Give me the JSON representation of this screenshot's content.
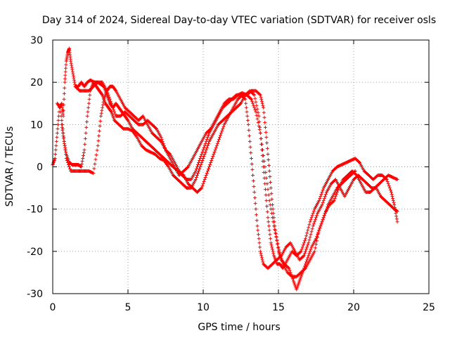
{
  "chart_data": {
    "type": "scatter",
    "title": "Day 314 of 2024, Sidereal Day-to-day VTEC variation (SDTVAR) for receiver osls",
    "xlabel": "GPS time / hours",
    "ylabel": "SDTVAR / TECUs",
    "xlim": [
      0,
      25
    ],
    "ylim": [
      -30,
      30
    ],
    "x_ticks": [
      0,
      5,
      10,
      15,
      20,
      25
    ],
    "y_ticks": [
      -30,
      -20,
      -10,
      0,
      10,
      20,
      30
    ],
    "grid": true,
    "marker": "+",
    "color": "#ff0000",
    "series": [
      {
        "values": [
          [
            0.0,
            0.5
          ],
          [
            0.15,
            2
          ],
          [
            0.3,
            8
          ],
          [
            0.45,
            14
          ],
          [
            0.6,
            15
          ],
          [
            0.7,
            12
          ],
          [
            0.8,
            20
          ],
          [
            0.9,
            25
          ],
          [
            1.0,
            27
          ],
          [
            1.1,
            28
          ],
          [
            1.2,
            25
          ],
          [
            1.35,
            22
          ],
          [
            1.5,
            19
          ],
          [
            1.7,
            19
          ],
          [
            1.9,
            20
          ],
          [
            2.1,
            19
          ],
          [
            2.3,
            20
          ],
          [
            2.5,
            20.5
          ],
          [
            2.8,
            20
          ],
          [
            3.0,
            20
          ],
          [
            3.2,
            19.5
          ],
          [
            3.4,
            19
          ],
          [
            3.6,
            17
          ],
          [
            3.8,
            15
          ],
          [
            4.0,
            14
          ],
          [
            4.2,
            15
          ],
          [
            4.4,
            14
          ],
          [
            4.6,
            13
          ],
          [
            4.8,
            12
          ],
          [
            5.0,
            11
          ],
          [
            5.3,
            9
          ],
          [
            5.6,
            8
          ],
          [
            5.9,
            7
          ],
          [
            6.2,
            6
          ],
          [
            6.5,
            5
          ],
          [
            6.8,
            4
          ],
          [
            7.1,
            3
          ],
          [
            7.4,
            2
          ],
          [
            7.7,
            1
          ],
          [
            8.0,
            0
          ],
          [
            8.3,
            -1
          ],
          [
            8.6,
            -2
          ],
          [
            8.9,
            -3
          ],
          [
            9.2,
            -3
          ],
          [
            9.5,
            -1
          ],
          [
            9.8,
            2
          ],
          [
            10.1,
            5
          ],
          [
            10.4,
            8
          ],
          [
            10.7,
            10
          ],
          [
            11.0,
            12
          ],
          [
            11.3,
            14
          ],
          [
            11.6,
            15
          ],
          [
            11.9,
            16
          ],
          [
            12.2,
            17
          ],
          [
            12.5,
            17
          ],
          [
            12.8,
            16
          ],
          [
            13.0,
            10
          ],
          [
            13.2,
            2
          ],
          [
            13.4,
            -6
          ],
          [
            13.6,
            -14
          ],
          [
            13.8,
            -20
          ],
          [
            14.0,
            -23
          ],
          [
            14.3,
            -24
          ],
          [
            14.6,
            -23
          ],
          [
            14.9,
            -22
          ],
          [
            15.2,
            -21
          ],
          [
            15.5,
            -19
          ],
          [
            15.8,
            -18
          ],
          [
            16.1,
            -20
          ],
          [
            16.4,
            -22
          ],
          [
            16.7,
            -21
          ],
          [
            17.0,
            -18
          ],
          [
            17.3,
            -14
          ],
          [
            17.6,
            -11
          ],
          [
            17.9,
            -9
          ],
          [
            18.2,
            -6
          ],
          [
            18.5,
            -4
          ],
          [
            18.8,
            -3
          ],
          [
            19.1,
            -5
          ],
          [
            19.4,
            -7
          ],
          [
            19.7,
            -5
          ],
          [
            20.0,
            -3
          ],
          [
            20.3,
            -2
          ],
          [
            20.6,
            -3
          ],
          [
            20.9,
            -4
          ],
          [
            21.2,
            -5
          ],
          [
            21.5,
            -5
          ],
          [
            21.8,
            -7
          ],
          [
            22.1,
            -8
          ],
          [
            22.4,
            -9
          ],
          [
            22.7,
            -10
          ],
          [
            22.9,
            -10.5
          ]
        ]
      },
      {
        "values": [
          [
            0.6,
            10
          ],
          [
            0.75,
            6
          ],
          [
            0.9,
            3
          ],
          [
            1.1,
            1
          ],
          [
            1.3,
            0.5
          ],
          [
            1.5,
            0.5
          ],
          [
            1.7,
            0.5
          ],
          [
            1.9,
            0
          ],
          [
            2.1,
            4
          ],
          [
            2.3,
            12
          ],
          [
            2.5,
            18
          ],
          [
            2.7,
            20
          ],
          [
            2.9,
            19
          ],
          [
            3.1,
            18
          ],
          [
            3.3,
            17
          ],
          [
            3.5,
            15
          ],
          [
            3.7,
            14
          ],
          [
            3.9,
            13
          ],
          [
            4.1,
            11
          ],
          [
            4.4,
            10
          ],
          [
            4.7,
            9
          ],
          [
            5.0,
            9
          ],
          [
            5.3,
            8.5
          ],
          [
            5.6,
            7
          ],
          [
            5.9,
            5
          ],
          [
            6.2,
            4
          ],
          [
            6.5,
            3.5
          ],
          [
            6.8,
            3
          ],
          [
            7.1,
            2
          ],
          [
            7.4,
            1.5
          ],
          [
            7.7,
            0
          ],
          [
            8.0,
            -2
          ],
          [
            8.3,
            -3
          ],
          [
            8.6,
            -4
          ],
          [
            8.9,
            -5
          ],
          [
            9.2,
            -5
          ],
          [
            9.5,
            -3
          ],
          [
            9.8,
            0
          ],
          [
            10.1,
            3
          ],
          [
            10.4,
            6
          ],
          [
            10.7,
            8
          ],
          [
            11.0,
            10
          ],
          [
            11.3,
            11
          ],
          [
            11.6,
            12
          ],
          [
            11.9,
            13
          ],
          [
            12.2,
            14
          ],
          [
            12.5,
            15
          ],
          [
            12.8,
            17
          ],
          [
            13.1,
            18
          ],
          [
            13.4,
            17
          ],
          [
            13.7,
            12
          ],
          [
            13.9,
            4
          ],
          [
            14.1,
            -4
          ],
          [
            14.3,
            -12
          ],
          [
            14.5,
            -18
          ],
          [
            14.7,
            -21
          ],
          [
            14.9,
            -23
          ],
          [
            15.1,
            -23
          ],
          [
            15.3,
            -24
          ],
          [
            15.6,
            -22
          ],
          [
            15.9,
            -20
          ],
          [
            16.2,
            -21
          ],
          [
            16.5,
            -20
          ],
          [
            16.8,
            -17
          ],
          [
            17.1,
            -13
          ],
          [
            17.4,
            -10
          ],
          [
            17.7,
            -8
          ],
          [
            18.0,
            -5
          ],
          [
            18.3,
            -3
          ],
          [
            18.6,
            -1
          ],
          [
            18.9,
            0
          ],
          [
            19.2,
            0.5
          ],
          [
            19.5,
            1
          ],
          [
            19.8,
            1.5
          ],
          [
            20.1,
            2
          ],
          [
            20.4,
            1
          ],
          [
            20.7,
            -1
          ],
          [
            21.0,
            -2
          ],
          [
            21.3,
            -3
          ],
          [
            21.6,
            -2
          ],
          [
            21.9,
            -2
          ],
          [
            22.2,
            -3
          ],
          [
            22.5,
            -6
          ],
          [
            22.7,
            -9
          ],
          [
            22.9,
            -13
          ]
        ]
      },
      {
        "values": [
          [
            0.3,
            15
          ],
          [
            0.5,
            14
          ],
          [
            0.7,
            8
          ],
          [
            0.9,
            2
          ],
          [
            1.2,
            -1
          ],
          [
            1.5,
            -1
          ],
          [
            1.8,
            -1
          ],
          [
            2.1,
            -1
          ],
          [
            2.4,
            -1
          ],
          [
            2.7,
            -1.5
          ],
          [
            3.0,
            5
          ],
          [
            3.2,
            12
          ],
          [
            3.4,
            16
          ],
          [
            3.6,
            18
          ],
          [
            3.8,
            19
          ],
          [
            4.0,
            19
          ],
          [
            4.2,
            18
          ],
          [
            4.5,
            16
          ],
          [
            4.8,
            14
          ],
          [
            5.1,
            13
          ],
          [
            5.4,
            12
          ],
          [
            5.7,
            11
          ],
          [
            6.0,
            12
          ],
          [
            6.3,
            10
          ],
          [
            6.6,
            8
          ],
          [
            6.9,
            7
          ],
          [
            7.2,
            6
          ],
          [
            7.5,
            4
          ],
          [
            7.8,
            3
          ],
          [
            8.1,
            1
          ],
          [
            8.4,
            -1
          ],
          [
            8.7,
            -2
          ],
          [
            9.0,
            -4
          ],
          [
            9.3,
            -5
          ],
          [
            9.6,
            -6
          ],
          [
            9.9,
            -5
          ],
          [
            10.2,
            -2
          ],
          [
            10.5,
            1
          ],
          [
            10.8,
            4
          ],
          [
            11.1,
            7
          ],
          [
            11.4,
            10
          ],
          [
            11.7,
            12
          ],
          [
            12.0,
            14
          ],
          [
            12.3,
            16
          ],
          [
            12.6,
            17
          ],
          [
            12.9,
            17
          ],
          [
            13.2,
            18
          ],
          [
            13.5,
            18
          ],
          [
            13.8,
            17
          ],
          [
            14.0,
            14
          ],
          [
            14.2,
            7
          ],
          [
            14.4,
            -1
          ],
          [
            14.6,
            -9
          ],
          [
            14.8,
            -15
          ],
          [
            15.0,
            -20
          ],
          [
            15.2,
            -22
          ],
          [
            15.4,
            -23
          ],
          [
            15.7,
            -24
          ],
          [
            16.0,
            -27
          ],
          [
            16.2,
            -29
          ],
          [
            16.4,
            -27
          ],
          [
            16.6,
            -25
          ],
          [
            16.9,
            -22
          ],
          [
            17.2,
            -19
          ],
          [
            17.5,
            -17
          ],
          [
            17.8,
            -14
          ],
          [
            18.1,
            -11
          ],
          [
            18.4,
            -9
          ],
          [
            18.7,
            -8
          ],
          [
            19.0,
            -5
          ],
          [
            19.3,
            -3
          ],
          [
            19.6,
            -2
          ],
          [
            19.9,
            -1
          ],
          [
            20.2,
            -2
          ],
          [
            20.5,
            -4
          ],
          [
            20.8,
            -6
          ],
          [
            21.1,
            -6
          ],
          [
            21.4,
            -5
          ],
          [
            21.7,
            -4
          ],
          [
            22.0,
            -3
          ],
          [
            22.3,
            -2
          ],
          [
            22.6,
            -2.5
          ],
          [
            22.9,
            -3
          ]
        ]
      },
      {
        "values": [
          [
            1.5,
            19
          ],
          [
            1.8,
            18
          ],
          [
            2.1,
            18
          ],
          [
            2.4,
            18
          ],
          [
            2.7,
            19
          ],
          [
            3.0,
            20
          ],
          [
            3.3,
            20
          ],
          [
            3.6,
            18
          ],
          [
            3.9,
            15
          ],
          [
            4.2,
            12
          ],
          [
            4.5,
            12
          ],
          [
            4.8,
            13
          ],
          [
            5.1,
            12
          ],
          [
            5.4,
            11
          ],
          [
            5.7,
            10
          ],
          [
            6.0,
            10
          ],
          [
            6.3,
            11
          ],
          [
            6.6,
            10
          ],
          [
            6.9,
            9
          ],
          [
            7.2,
            7
          ],
          [
            7.5,
            4
          ],
          [
            7.8,
            2
          ],
          [
            8.1,
            0
          ],
          [
            8.4,
            -2
          ],
          [
            8.7,
            -1
          ],
          [
            9.0,
            0
          ],
          [
            9.3,
            2
          ],
          [
            9.6,
            4
          ],
          [
            9.9,
            6
          ],
          [
            10.2,
            8
          ],
          [
            10.5,
            9
          ],
          [
            10.8,
            11
          ],
          [
            11.1,
            13
          ],
          [
            11.4,
            15
          ],
          [
            11.7,
            16
          ],
          [
            12.0,
            16
          ],
          [
            12.3,
            17
          ],
          [
            12.6,
            17.5
          ],
          [
            12.9,
            17
          ],
          [
            13.2,
            16
          ],
          [
            13.5,
            13
          ],
          [
            13.8,
            8
          ],
          [
            14.1,
            0
          ],
          [
            14.4,
            -8
          ],
          [
            14.7,
            -14
          ],
          [
            15.0,
            -19
          ],
          [
            15.3,
            -23
          ],
          [
            15.6,
            -25
          ],
          [
            15.9,
            -26
          ],
          [
            16.2,
            -26
          ],
          [
            16.5,
            -25
          ],
          [
            16.8,
            -24
          ],
          [
            17.1,
            -22
          ],
          [
            17.4,
            -20
          ],
          [
            17.7,
            -15
          ],
          [
            18.0,
            -12
          ],
          [
            18.3,
            -9
          ],
          [
            18.6,
            -7
          ],
          [
            18.9,
            -5
          ],
          [
            19.2,
            -4
          ],
          [
            19.5,
            -3
          ],
          [
            19.8,
            -2
          ],
          [
            20.1,
            -1
          ]
        ]
      }
    ]
  }
}
